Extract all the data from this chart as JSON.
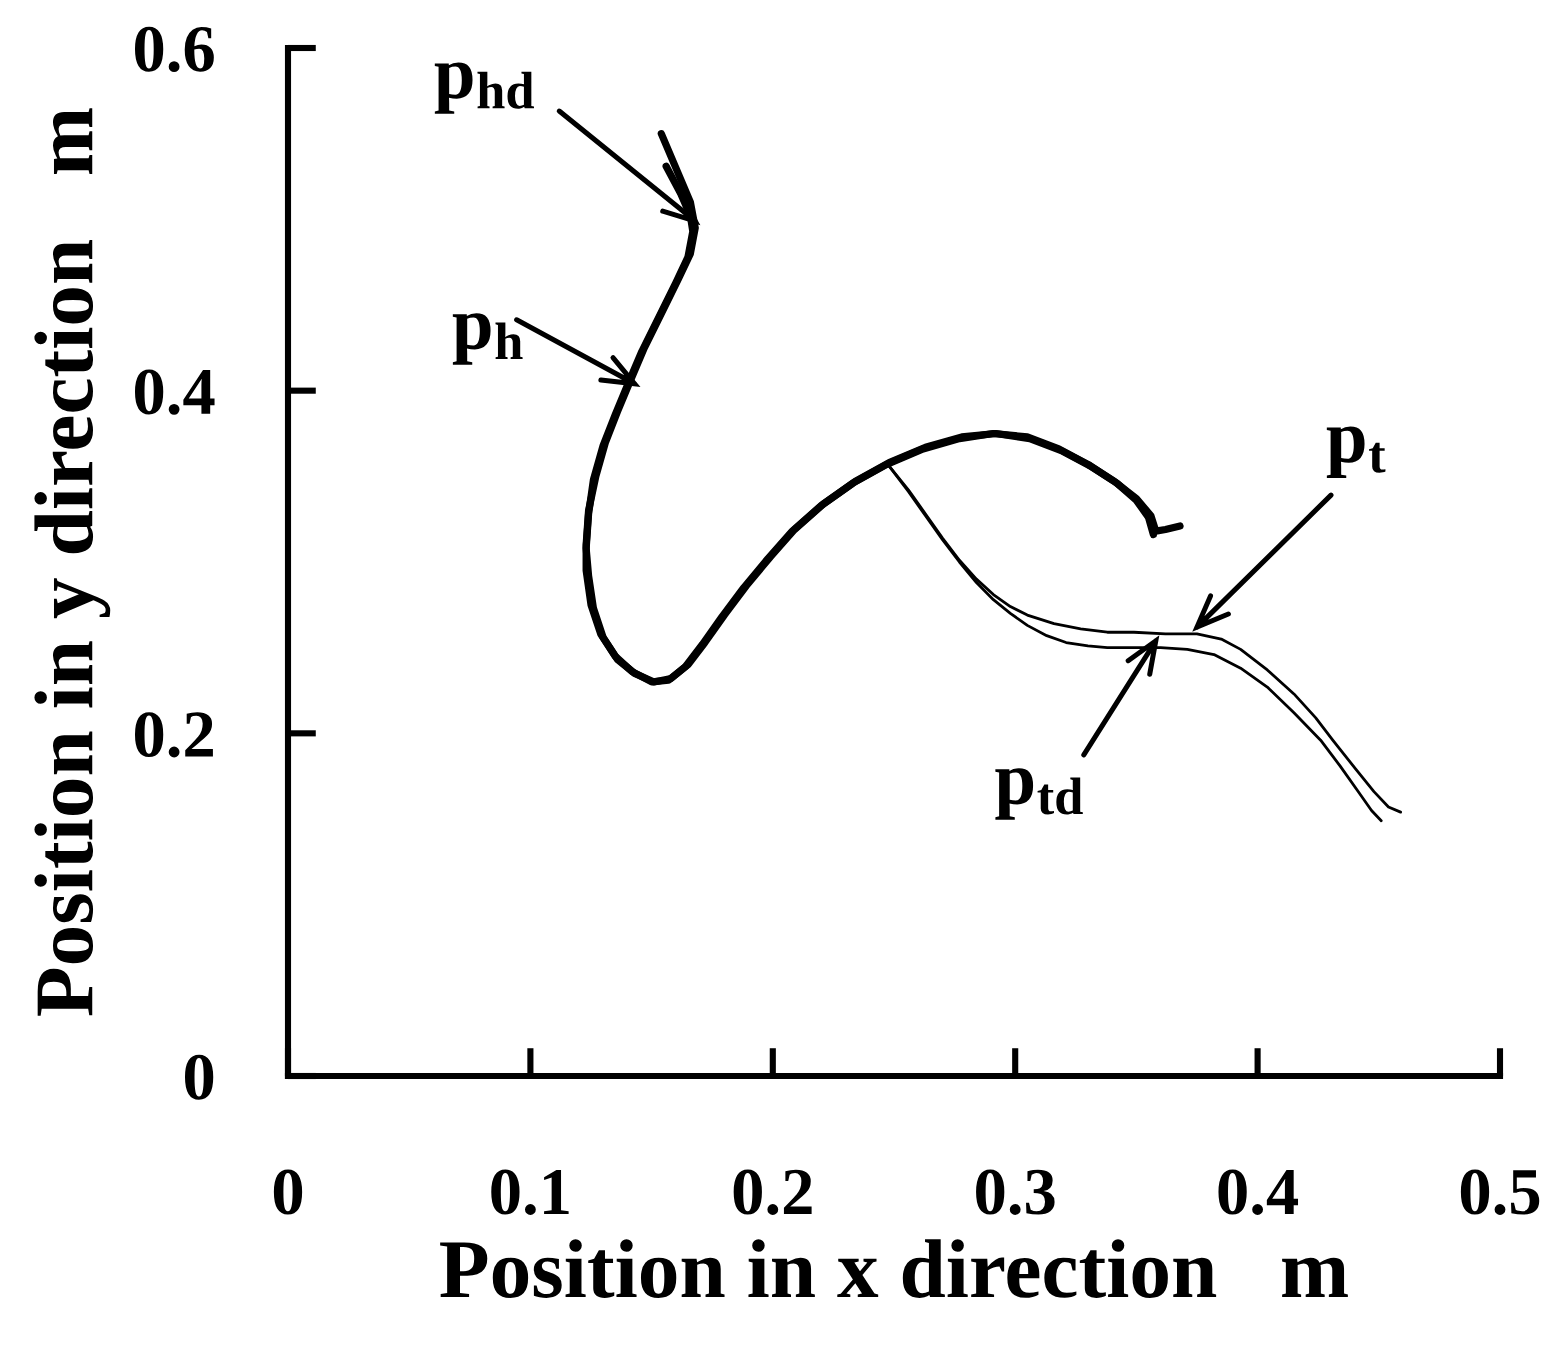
{
  "chart_data": {
    "type": "line",
    "xlabel": "Position in x direction   m",
    "ylabel": "Position in y direction   m",
    "xlim": [
      0,
      0.5
    ],
    "xticks": [
      0,
      0.1,
      0.2,
      0.3,
      0.4,
      0.5
    ],
    "ylim": [
      0,
      0.6
    ],
    "yticks": [
      0,
      0.2,
      0.4,
      0.6
    ],
    "series": [
      {
        "color": "#000000",
        "x": [
          0.154,
          0.16,
          0.166,
          0.168,
          0.166,
          0.161,
          0.154,
          0.147,
          0.141,
          0.136,
          0.131,
          0.127,
          0.124,
          0.123,
          0.123,
          0.125,
          0.129,
          0.135,
          0.142,
          0.15,
          0.157,
          0.164,
          0.171,
          0.179,
          0.188,
          0.198,
          0.208,
          0.22,
          0.233,
          0.247,
          0.262,
          0.277,
          0.291,
          0.305,
          0.318,
          0.33,
          0.341,
          0.35,
          0.356,
          0.358,
          0.362,
          0.368
        ],
        "values": [
          0.55,
          0.53,
          0.51,
          0.495,
          0.48,
          0.465,
          0.445,
          0.425,
          0.405,
          0.388,
          0.37,
          0.35,
          0.33,
          0.31,
          0.295,
          0.275,
          0.258,
          0.245,
          0.236,
          0.23,
          0.231,
          0.239,
          0.252,
          0.268,
          0.285,
          0.302,
          0.318,
          0.333,
          0.346,
          0.357,
          0.366,
          0.372,
          0.375,
          0.373,
          0.366,
          0.357,
          0.347,
          0.337,
          0.327,
          0.318,
          0.319,
          0.321
        ]
      },
      {
        "color": "#000000",
        "x": [
          0.156,
          0.162,
          0.166,
          0.167,
          0.165,
          0.16,
          0.153,
          0.146,
          0.14,
          0.135,
          0.13,
          0.126,
          0.124,
          0.123,
          0.124,
          0.126,
          0.13,
          0.136,
          0.143,
          0.151,
          0.158,
          0.165,
          0.172,
          0.18,
          0.189,
          0.199,
          0.209,
          0.221,
          0.234,
          0.248,
          0.263,
          0.278,
          0.292,
          0.306,
          0.319,
          0.331,
          0.342,
          0.35,
          0.355,
          0.357
        ],
        "values": [
          0.531,
          0.515,
          0.502,
          0.493,
          0.478,
          0.463,
          0.443,
          0.423,
          0.403,
          0.386,
          0.368,
          0.348,
          0.328,
          0.308,
          0.292,
          0.273,
          0.256,
          0.243,
          0.235,
          0.23,
          0.232,
          0.24,
          0.253,
          0.269,
          0.286,
          0.303,
          0.319,
          0.334,
          0.347,
          0.358,
          0.367,
          0.373,
          0.375,
          0.372,
          0.365,
          0.356,
          0.346,
          0.336,
          0.326,
          0.316
        ]
      },
      {
        "color": "#000000",
        "x": [
          0.248,
          0.256,
          0.263,
          0.27,
          0.277,
          0.284,
          0.291,
          0.298,
          0.305,
          0.316,
          0.327,
          0.338,
          0.349,
          0.362,
          0.375,
          0.385,
          0.393,
          0.404,
          0.415,
          0.424,
          0.431,
          0.44,
          0.448,
          0.454,
          0.459
        ],
        "values": [
          0.356,
          0.342,
          0.328,
          0.314,
          0.301,
          0.29,
          0.281,
          0.274,
          0.269,
          0.264,
          0.261,
          0.259,
          0.259,
          0.258,
          0.258,
          0.255,
          0.249,
          0.237,
          0.223,
          0.209,
          0.196,
          0.18,
          0.166,
          0.157,
          0.154
        ]
      },
      {
        "color": "#000000",
        "x": [
          0.248,
          0.256,
          0.263,
          0.27,
          0.277,
          0.284,
          0.291,
          0.298,
          0.305,
          0.313,
          0.321,
          0.33,
          0.338,
          0.349,
          0.36,
          0.371,
          0.382,
          0.393,
          0.404,
          0.415,
          0.426,
          0.434,
          0.442,
          0.447,
          0.451
        ],
        "values": [
          0.356,
          0.341,
          0.327,
          0.313,
          0.3,
          0.288,
          0.278,
          0.27,
          0.263,
          0.257,
          0.253,
          0.251,
          0.25,
          0.25,
          0.25,
          0.249,
          0.246,
          0.238,
          0.227,
          0.212,
          0.196,
          0.181,
          0.165,
          0.155,
          0.149
        ]
      }
    ],
    "annotations": [
      {
        "text": "p$_{hd}$",
        "x": 0.168,
        "y": 0.499
      },
      {
        "text": "p$_{h}$",
        "x": 0.143,
        "y": 0.404
      },
      {
        "text": "p$_{t}$",
        "x": 0.375,
        "y": 0.262
      },
      {
        "text": "p$_{td}$",
        "x": 0.358,
        "y": 0.254
      }
    ]
  }
}
